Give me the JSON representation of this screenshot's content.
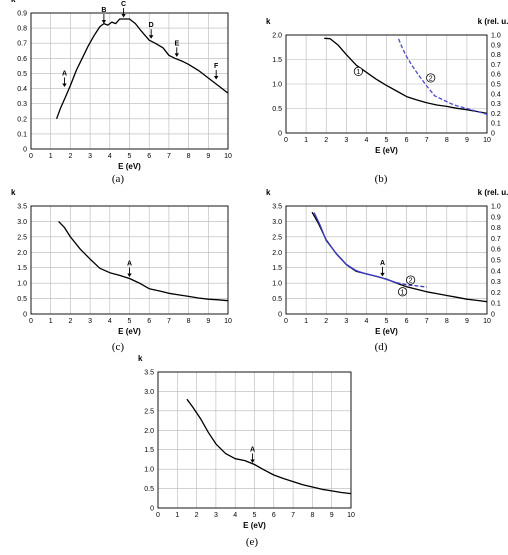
{
  "chart_data": [
    {
      "id": "a",
      "type": "line",
      "panel_label": "(a)",
      "ylabel": "k",
      "xlabel": "E (eV)",
      "xlim": [
        0,
        10
      ],
      "xticks": [
        0,
        1,
        2,
        3,
        4,
        5,
        6,
        7,
        8,
        9,
        10
      ],
      "ylim": [
        0,
        0.9
      ],
      "yticks": [
        "0",
        "0.1",
        "0.2",
        "0.3",
        "0.4",
        "0.5",
        "0.6",
        "0.7",
        "0.8",
        "0.9"
      ],
      "grid": true,
      "series": [
        {
          "axis": "left",
          "color": "#000000",
          "dashed": false,
          "x": [
            1.3,
            1.5,
            1.8,
            2.0,
            2.3,
            2.6,
            2.9,
            3.2,
            3.5,
            3.7,
            3.9,
            4.1,
            4.3,
            4.5,
            4.8,
            5.0,
            5.3,
            5.6,
            6.0,
            6.3,
            6.7,
            7.0,
            7.3,
            7.7,
            8.0,
            8.5,
            9.0,
            9.5,
            10.0
          ],
          "y": [
            0.2,
            0.27,
            0.36,
            0.42,
            0.52,
            0.6,
            0.68,
            0.75,
            0.81,
            0.83,
            0.82,
            0.84,
            0.83,
            0.86,
            0.86,
            0.86,
            0.83,
            0.78,
            0.72,
            0.7,
            0.67,
            0.62,
            0.6,
            0.58,
            0.56,
            0.52,
            0.47,
            0.42,
            0.37
          ]
        }
      ],
      "annotations": [
        {
          "text": "A",
          "x": 1.7,
          "y": 0.4
        },
        {
          "text": "B",
          "x": 3.7,
          "y": 0.82
        },
        {
          "text": "C",
          "x": 4.7,
          "y": 0.86
        },
        {
          "text": "D",
          "x": 6.1,
          "y": 0.72
        },
        {
          "text": "E",
          "x": 7.4,
          "y": 0.6
        },
        {
          "text": "F",
          "x": 9.4,
          "y": 0.45
        }
      ],
      "circles": []
    },
    {
      "id": "b",
      "type": "line",
      "panel_label": "(b)",
      "ylabel": "k",
      "xlabel": "E (eV)",
      "y2label": "k (rel. u.)",
      "xlim": [
        0,
        10
      ],
      "xticks": [
        0,
        1,
        2,
        3,
        4,
        5,
        6,
        7,
        8,
        9,
        10
      ],
      "ylim": [
        0,
        2.1
      ],
      "yticks": [
        "0",
        "0.5",
        "1.0",
        "1.5",
        "2.0"
      ],
      "y2lim": [
        0,
        1.0
      ],
      "y2ticks": [
        "0",
        "0.1",
        "0.2",
        "0.3",
        "0.4",
        "0.5",
        "0.6",
        "0.7",
        "0.8",
        "0.9",
        "1.0"
      ],
      "grid": true,
      "series": [
        {
          "axis": "left",
          "color": "#000000",
          "dashed": false,
          "x": [
            1.9,
            2.2,
            2.6,
            3.0,
            3.5,
            4.0,
            4.5,
            5.0,
            5.5,
            6.0,
            6.5,
            7.0,
            7.5,
            8.0,
            8.5,
            9.0,
            9.5,
            10.0
          ],
          "y": [
            2.03,
            2.02,
            1.88,
            1.68,
            1.45,
            1.3,
            1.15,
            1.02,
            0.9,
            0.78,
            0.71,
            0.65,
            0.6,
            0.57,
            0.53,
            0.5,
            0.46,
            0.42
          ]
        },
        {
          "axis": "right",
          "color": "#4a4ad0",
          "dashed": true,
          "x": [
            5.6,
            5.8,
            6.0,
            6.3,
            6.6,
            7.0,
            7.4,
            7.8,
            8.2,
            8.6,
            9.0,
            9.5,
            10.0
          ],
          "y": [
            0.96,
            0.86,
            0.78,
            0.68,
            0.59,
            0.48,
            0.38,
            0.34,
            0.3,
            0.27,
            0.25,
            0.22,
            0.19
          ]
        }
      ],
      "annotations": [],
      "circles": [
        {
          "text": "1",
          "x": 3.6,
          "y": 1.32
        },
        {
          "text": "2",
          "x": 7.2,
          "y": 1.18
        }
      ]
    },
    {
      "id": "c",
      "type": "line",
      "panel_label": "(c)",
      "ylabel": "k",
      "xlabel": "E (eV)",
      "xlim": [
        0,
        10
      ],
      "xticks": [
        0,
        1,
        2,
        3,
        4,
        5,
        6,
        7,
        8,
        9,
        10
      ],
      "ylim": [
        0,
        3.5
      ],
      "yticks": [
        "0",
        "0.5",
        "1.0",
        "1.5",
        "2.0",
        "2.5",
        "3.0",
        "3.5"
      ],
      "grid": true,
      "series": [
        {
          "axis": "left",
          "color": "#000000",
          "dashed": false,
          "x": [
            1.4,
            1.7,
            2.0,
            2.5,
            3.0,
            3.5,
            4.0,
            4.5,
            5.0,
            5.5,
            6.0,
            6.5,
            7.0,
            7.5,
            8.0,
            8.5,
            9.0,
            9.5,
            10.0
          ],
          "y": [
            3.0,
            2.8,
            2.5,
            2.1,
            1.78,
            1.48,
            1.34,
            1.25,
            1.15,
            1.0,
            0.82,
            0.75,
            0.67,
            0.62,
            0.57,
            0.52,
            0.48,
            0.46,
            0.43
          ]
        }
      ],
      "annotations": [
        {
          "text": "A",
          "x": 5.0,
          "y": 1.15
        }
      ],
      "circles": []
    },
    {
      "id": "d",
      "type": "line",
      "panel_label": "(d)",
      "ylabel": "k",
      "xlabel": "E (eV)",
      "y2label": "k (rel. u.)",
      "xlim": [
        0,
        10
      ],
      "xticks": [
        0,
        1,
        2,
        3,
        4,
        5,
        6,
        7,
        8,
        9,
        10
      ],
      "ylim": [
        0,
        3.5
      ],
      "yticks": [
        "0",
        "0.5",
        "1.0",
        "1.5",
        "2.0",
        "2.5",
        "3.0",
        "3.5"
      ],
      "y2lim": [
        0,
        1.0
      ],
      "y2ticks": [
        "0",
        "0.1",
        "0.2",
        "0.3",
        "0.4",
        "0.5",
        "0.6",
        "0.7",
        "0.8",
        "0.9",
        "1.0"
      ],
      "grid": true,
      "series": [
        {
          "axis": "left",
          "color": "#000000",
          "dashed": false,
          "x": [
            1.3,
            1.6,
            2.0,
            2.5,
            3.0,
            3.5,
            4.0,
            4.5,
            5.0,
            5.5,
            6.0,
            6.5,
            7.0,
            7.5,
            8.0,
            8.5,
            9.0,
            9.5,
            10.0
          ],
          "y": [
            3.3,
            2.95,
            2.4,
            1.95,
            1.6,
            1.38,
            1.3,
            1.22,
            1.13,
            1.0,
            0.88,
            0.8,
            0.72,
            0.66,
            0.6,
            0.54,
            0.48,
            0.44,
            0.4
          ]
        },
        {
          "axis": "right",
          "color": "#3a3ac8",
          "dashed": false,
          "x": [
            1.4,
            1.7,
            2.0,
            2.5,
            3.0,
            3.5,
            4.0,
            4.5,
            5.0,
            5.5
          ],
          "y": [
            0.94,
            0.82,
            0.68,
            0.56,
            0.46,
            0.4,
            0.37,
            0.35,
            0.32,
            0.29
          ]
        },
        {
          "axis": "right",
          "color": "#3a3ac8",
          "dashed": true,
          "x": [
            5.5,
            6.0,
            6.5,
            7.0
          ],
          "y": [
            0.29,
            0.27,
            0.26,
            0.25
          ]
        }
      ],
      "annotations": [
        {
          "text": "A",
          "x": 4.8,
          "y": 1.17
        }
      ],
      "circles": [
        {
          "text": "2",
          "x": 6.2,
          "y": 1.1
        },
        {
          "text": "1",
          "x": 5.8,
          "y": 0.72
        }
      ]
    },
    {
      "id": "e",
      "type": "line",
      "panel_label": "(e)",
      "ylabel": "k",
      "xlabel": "E (eV)",
      "xlim": [
        0,
        10
      ],
      "xticks": [
        0,
        1,
        2,
        3,
        4,
        5,
        6,
        7,
        8,
        9,
        10
      ],
      "ylim": [
        0,
        3.5
      ],
      "yticks": [
        "0",
        "0.5",
        "1.0",
        "1.5",
        "2.0",
        "2.5",
        "3.0",
        "3.5"
      ],
      "grid": true,
      "series": [
        {
          "axis": "left",
          "color": "#000000",
          "dashed": false,
          "x": [
            1.5,
            1.8,
            2.2,
            2.6,
            3.0,
            3.5,
            4.0,
            4.5,
            5.0,
            5.5,
            6.0,
            6.5,
            7.0,
            7.5,
            8.0,
            8.5,
            9.0,
            9.5,
            10.0
          ],
          "y": [
            2.8,
            2.6,
            2.3,
            1.95,
            1.65,
            1.4,
            1.27,
            1.22,
            1.12,
            0.98,
            0.85,
            0.76,
            0.68,
            0.6,
            0.54,
            0.48,
            0.44,
            0.4,
            0.37
          ]
        }
      ],
      "annotations": [
        {
          "text": "A",
          "x": 4.9,
          "y": 1.12
        }
      ],
      "circles": []
    }
  ]
}
